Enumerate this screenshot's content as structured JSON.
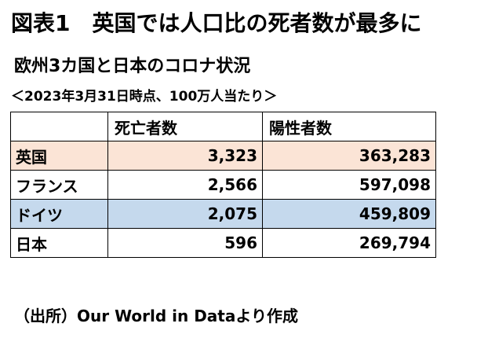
{
  "title": "図表1　英国では人口比の死者数が最多に",
  "subtitle": "欧州3カ国と日本のコロナ状況",
  "caption": "＜2023年3月31日時点、100万人当たり＞",
  "table": {
    "headers": [
      "",
      "死亡者数",
      "陽性者数"
    ],
    "rows": [
      {
        "country": "英国",
        "deaths": "3,323",
        "cases": "363,283",
        "bg": "#fbe4d6"
      },
      {
        "country": "フランス",
        "deaths": "2,566",
        "cases": "597,098",
        "bg": "#ffffff"
      },
      {
        "country": "ドイツ",
        "deaths": "2,075",
        "cases": "459,809",
        "bg": "#c5d9ed"
      },
      {
        "country": "日本",
        "deaths": "596",
        "cases": "269,794",
        "bg": "#ffffff"
      }
    ]
  },
  "source": "（出所）Our World in Dataより作成"
}
